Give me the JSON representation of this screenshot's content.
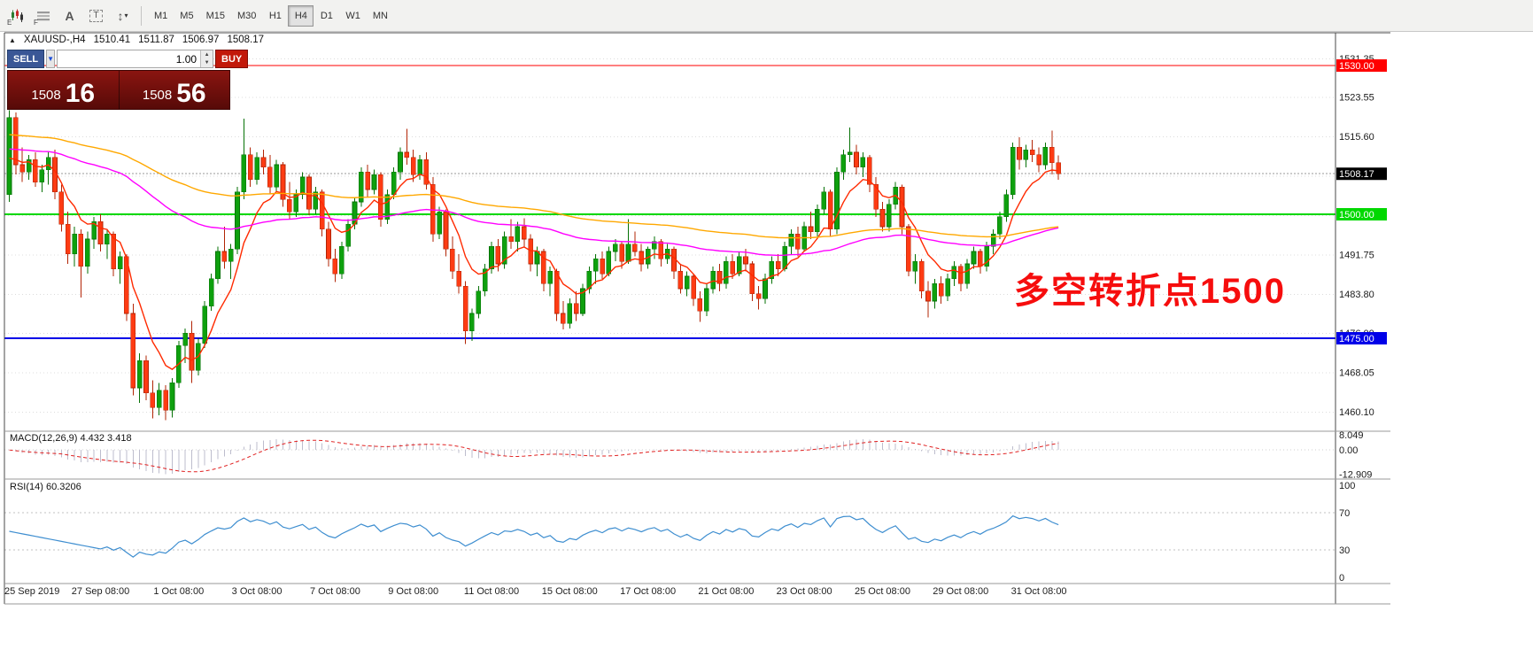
{
  "window": {
    "bg": "#ffffff"
  },
  "toolbar": {
    "icons": [
      {
        "name": "candlestick-chart-icon",
        "kind": "candles",
        "badge": "E"
      },
      {
        "name": "indicator-list-icon",
        "kind": "lines",
        "badge": "F"
      },
      {
        "name": "text-annotation-icon",
        "glyph": "A"
      },
      {
        "name": "text-box-icon",
        "glyph": "T",
        "boxed": true
      },
      {
        "name": "object-sort-icon",
        "glyph": "↕",
        "caret": true
      }
    ],
    "timeframes": [
      {
        "label": "M1"
      },
      {
        "label": "M5"
      },
      {
        "label": "M15"
      },
      {
        "label": "M30"
      },
      {
        "label": "H1"
      },
      {
        "label": "H4",
        "active": true
      },
      {
        "label": "D1"
      },
      {
        "label": "W1"
      },
      {
        "label": "MN"
      }
    ]
  },
  "chart": {
    "title_line": {
      "collapse_icon": "▲",
      "symbol_period": "XAUUSD-,H4",
      "open": "1510.41",
      "high": "1511.87",
      "low": "1506.97",
      "close": "1508.17"
    },
    "trade_panel": {
      "sell_label": "SELL",
      "buy_label": "BUY",
      "volume": "1.00",
      "sell_price_main": "1508",
      "sell_price_big": "16",
      "buy_price_main": "1508",
      "buy_price_big": "56",
      "colors": {
        "sell_bg": "#3a5796",
        "buy_bg": "#c2180a",
        "panel_top": "#8a1510",
        "panel_bottom": "#570a08"
      }
    },
    "annotation": {
      "text": "多空转折点1500",
      "color": "#f60d0d"
    },
    "hlines": [
      {
        "value": 1530.0,
        "label": "1530.00",
        "color": "#ff0000",
        "width": 1
      },
      {
        "value": 1500.0,
        "label": "1500.00",
        "color": "#00d800",
        "width": 2
      },
      {
        "value": 1475.0,
        "label": "1475.00",
        "color": "#0000e8",
        "width": 2
      }
    ],
    "price_axis": {
      "labels": [
        1531.35,
        1523.55,
        1515.6,
        1491.75,
        1483.8,
        1476.0,
        1468.05,
        1460.1
      ],
      "grid": [
        1531.35,
        1523.55,
        1515.6,
        1507.65,
        1499.7,
        1491.75,
        1483.8,
        1476.0,
        1468.05,
        1460.1
      ],
      "current": {
        "value": 1508.17,
        "label": "1508.17",
        "bg": "#000000",
        "text": "#ffffff"
      }
    },
    "colors": {
      "up": "#0ea00e",
      "up_border": "#067206",
      "down": "#fd3b13",
      "down_border": "#b22405",
      "grid": "#dcdcdc",
      "axis_text": "#1a1a1a",
      "border": "#4a4a4a",
      "bid_line": "#9a9a9a"
    }
  },
  "chart_data": {
    "type": "candlestick",
    "symbol": "XAUUSD-",
    "timeframe": "H4",
    "x_labels": [
      {
        "index": 2,
        "label": "25 Sep 2019"
      },
      {
        "index": 14,
        "label": "27 Sep 08:00"
      },
      {
        "index": 26,
        "label": "1 Oct 08:00"
      },
      {
        "index": 38,
        "label": "3 Oct 08:00"
      },
      {
        "index": 50,
        "label": "7 Oct 08:00"
      },
      {
        "index": 62,
        "label": "9 Oct 08:00"
      },
      {
        "index": 74,
        "label": "11 Oct 08:00"
      },
      {
        "index": 86,
        "label": "15 Oct 08:00"
      },
      {
        "index": 98,
        "label": "17 Oct 08:00"
      },
      {
        "index": 110,
        "label": "21 Oct 08:00"
      },
      {
        "index": 122,
        "label": "23 Oct 08:00"
      },
      {
        "index": 134,
        "label": "25 Oct 08:00"
      },
      {
        "index": 146,
        "label": "29 Oct 08:00"
      },
      {
        "index": 158,
        "label": "31 Oct 08:00"
      }
    ],
    "candles": [
      [
        1504.0,
        1521.0,
        1502.5,
        1519.5
      ],
      [
        1519.5,
        1520.5,
        1508.0,
        1510.0
      ],
      [
        1510.0,
        1513.5,
        1506.5,
        1508.5
      ],
      [
        1508.5,
        1512.0,
        1507.0,
        1511.0
      ],
      [
        1511.0,
        1512.5,
        1505.5,
        1506.5
      ],
      [
        1506.5,
        1510.0,
        1504.5,
        1509.0
      ],
      [
        1509.0,
        1512.5,
        1506.0,
        1511.5
      ],
      [
        1511.5,
        1513.0,
        1503.0,
        1504.5
      ],
      [
        1504.5,
        1506.0,
        1496.5,
        1498.0
      ],
      [
        1498.0,
        1500.5,
        1490.0,
        1492.0
      ],
      [
        1492.0,
        1497.5,
        1489.5,
        1496.0
      ],
      [
        1496.0,
        1497.0,
        1483.2,
        1489.5
      ],
      [
        1489.5,
        1496.5,
        1488.0,
        1495.0
      ],
      [
        1495.0,
        1499.5,
        1493.0,
        1498.5
      ],
      [
        1498.5,
        1500.0,
        1492.5,
        1494.0
      ],
      [
        1494.0,
        1497.0,
        1491.0,
        1496.0
      ],
      [
        1496.0,
        1496.5,
        1487.5,
        1489.0
      ],
      [
        1489.0,
        1492.5,
        1486.0,
        1491.5
      ],
      [
        1491.5,
        1492.0,
        1478.5,
        1480.0
      ],
      [
        1480.0,
        1482.0,
        1463.5,
        1465.0
      ],
      [
        1465.0,
        1472.0,
        1462.0,
        1470.5
      ],
      [
        1470.5,
        1471.5,
        1462.5,
        1464.0
      ],
      [
        1464.0,
        1466.5,
        1458.8,
        1461.0
      ],
      [
        1461.0,
        1466.0,
        1459.5,
        1464.5
      ],
      [
        1464.5,
        1465.5,
        1458.5,
        1460.5
      ],
      [
        1460.5,
        1467.0,
        1459.0,
        1466.0
      ],
      [
        1466.0,
        1474.5,
        1465.0,
        1473.5
      ],
      [
        1473.5,
        1477.0,
        1470.0,
        1476.0
      ],
      [
        1476.0,
        1478.5,
        1466.0,
        1468.5
      ],
      [
        1468.5,
        1475.0,
        1467.5,
        1474.0
      ],
      [
        1474.0,
        1482.5,
        1473.0,
        1481.5
      ],
      [
        1481.5,
        1488.0,
        1480.5,
        1487.0
      ],
      [
        1487.0,
        1493.5,
        1486.0,
        1492.5
      ],
      [
        1492.5,
        1497.5,
        1489.0,
        1490.5
      ],
      [
        1490.5,
        1494.0,
        1487.0,
        1493.0
      ],
      [
        1493.0,
        1505.5,
        1492.0,
        1504.5
      ],
      [
        1504.5,
        1519.3,
        1503.0,
        1512.0
      ],
      [
        1512.0,
        1513.5,
        1505.5,
        1507.0
      ],
      [
        1507.0,
        1512.5,
        1506.0,
        1511.5
      ],
      [
        1511.5,
        1513.0,
        1508.0,
        1509.5
      ],
      [
        1509.5,
        1512.0,
        1504.0,
        1505.5
      ],
      [
        1505.5,
        1511.0,
        1504.5,
        1510.0
      ],
      [
        1510.0,
        1510.5,
        1501.5,
        1503.0
      ],
      [
        1503.0,
        1506.5,
        1499.0,
        1500.5
      ],
      [
        1500.5,
        1505.0,
        1499.5,
        1504.0
      ],
      [
        1504.0,
        1508.5,
        1503.0,
        1507.5
      ],
      [
        1507.5,
        1508.0,
        1499.8,
        1501.0
      ],
      [
        1501.0,
        1505.5,
        1500.0,
        1504.5
      ],
      [
        1504.5,
        1505.0,
        1495.5,
        1497.0
      ],
      [
        1497.0,
        1498.5,
        1489.5,
        1491.0
      ],
      [
        1491.0,
        1493.0,
        1486.3,
        1488.0
      ],
      [
        1488.0,
        1494.5,
        1487.0,
        1493.5
      ],
      [
        1493.5,
        1499.0,
        1492.5,
        1498.0
      ],
      [
        1498.0,
        1503.5,
        1497.0,
        1502.5
      ],
      [
        1502.5,
        1509.5,
        1501.5,
        1508.5
      ],
      [
        1508.5,
        1510.0,
        1503.5,
        1505.0
      ],
      [
        1505.0,
        1509.0,
        1504.0,
        1508.0
      ],
      [
        1508.0,
        1508.5,
        1497.5,
        1499.0
      ],
      [
        1499.0,
        1505.0,
        1498.0,
        1504.0
      ],
      [
        1504.0,
        1509.5,
        1503.0,
        1508.5
      ],
      [
        1508.5,
        1513.5,
        1507.0,
        1512.5
      ],
      [
        1512.5,
        1517.2,
        1510.0,
        1511.5
      ],
      [
        1511.5,
        1513.0,
        1506.5,
        1508.0
      ],
      [
        1508.0,
        1512.0,
        1507.0,
        1511.0
      ],
      [
        1511.0,
        1512.5,
        1505.0,
        1506.0
      ],
      [
        1506.0,
        1507.5,
        1494.5,
        1496.0
      ],
      [
        1496.0,
        1501.5,
        1495.0,
        1500.5
      ],
      [
        1500.5,
        1501.0,
        1491.5,
        1493.0
      ],
      [
        1493.0,
        1495.5,
        1487.0,
        1488.5
      ],
      [
        1488.5,
        1492.0,
        1484.0,
        1485.5
      ],
      [
        1485.5,
        1486.5,
        1473.8,
        1476.5
      ],
      [
        1476.5,
        1481.0,
        1474.5,
        1480.0
      ],
      [
        1480.0,
        1485.5,
        1479.0,
        1484.5
      ],
      [
        1484.5,
        1490.0,
        1483.5,
        1489.0
      ],
      [
        1489.0,
        1494.5,
        1488.0,
        1493.5
      ],
      [
        1493.5,
        1495.0,
        1488.5,
        1490.0
      ],
      [
        1490.0,
        1496.5,
        1489.0,
        1495.5
      ],
      [
        1495.5,
        1499.0,
        1493.0,
        1494.5
      ],
      [
        1494.5,
        1498.5,
        1492.5,
        1497.5
      ],
      [
        1497.5,
        1499.2,
        1493.5,
        1495.0
      ],
      [
        1495.0,
        1496.0,
        1488.5,
        1490.0
      ],
      [
        1490.0,
        1493.5,
        1487.5,
        1492.5
      ],
      [
        1492.5,
        1493.0,
        1484.5,
        1486.0
      ],
      [
        1486.0,
        1489.5,
        1483.5,
        1488.5
      ],
      [
        1488.5,
        1489.0,
        1478.5,
        1480.0
      ],
      [
        1480.0,
        1482.5,
        1476.8,
        1478.0
      ],
      [
        1478.0,
        1483.0,
        1477.0,
        1482.0
      ],
      [
        1482.0,
        1484.5,
        1478.5,
        1480.0
      ],
      [
        1480.0,
        1486.0,
        1479.5,
        1485.0
      ],
      [
        1485.0,
        1489.5,
        1484.0,
        1488.5
      ],
      [
        1488.5,
        1492.0,
        1486.0,
        1491.0
      ],
      [
        1491.0,
        1492.5,
        1487.0,
        1488.0
      ],
      [
        1488.0,
        1493.5,
        1487.5,
        1492.5
      ],
      [
        1492.5,
        1495.0,
        1490.5,
        1494.0
      ],
      [
        1494.0,
        1494.5,
        1489.0,
        1490.5
      ],
      [
        1490.5,
        1499.0,
        1490.0,
        1494.0
      ],
      [
        1494.0,
        1496.5,
        1491.5,
        1492.5
      ],
      [
        1492.5,
        1494.0,
        1488.5,
        1490.0
      ],
      [
        1490.0,
        1493.5,
        1489.0,
        1493.0
      ],
      [
        1493.0,
        1495.5,
        1491.0,
        1494.5
      ],
      [
        1494.5,
        1495.0,
        1489.5,
        1491.0
      ],
      [
        1491.0,
        1494.0,
        1490.0,
        1493.0
      ],
      [
        1493.0,
        1493.5,
        1487.0,
        1488.5
      ],
      [
        1488.5,
        1490.0,
        1484.0,
        1485.0
      ],
      [
        1485.0,
        1488.5,
        1483.5,
        1487.5
      ],
      [
        1487.5,
        1488.0,
        1481.5,
        1483.0
      ],
      [
        1483.0,
        1484.5,
        1478.3,
        1480.5
      ],
      [
        1480.5,
        1486.0,
        1479.5,
        1485.0
      ],
      [
        1485.0,
        1489.5,
        1484.0,
        1488.5
      ],
      [
        1488.5,
        1490.0,
        1484.5,
        1486.0
      ],
      [
        1486.0,
        1491.5,
        1485.0,
        1490.5
      ],
      [
        1490.5,
        1492.0,
        1487.0,
        1488.0
      ],
      [
        1488.0,
        1492.5,
        1487.5,
        1491.5
      ],
      [
        1491.5,
        1493.0,
        1488.5,
        1490.0
      ],
      [
        1490.0,
        1490.5,
        1482.5,
        1484.0
      ],
      [
        1484.0,
        1485.5,
        1480.8,
        1483.0
      ],
      [
        1483.0,
        1488.0,
        1482.0,
        1487.0
      ],
      [
        1487.0,
        1491.5,
        1486.0,
        1490.5
      ],
      [
        1490.5,
        1492.0,
        1487.5,
        1489.0
      ],
      [
        1489.0,
        1494.5,
        1488.5,
        1493.5
      ],
      [
        1493.5,
        1497.0,
        1492.0,
        1496.0
      ],
      [
        1496.0,
        1497.5,
        1491.5,
        1493.0
      ],
      [
        1493.0,
        1498.5,
        1492.5,
        1497.5
      ],
      [
        1497.5,
        1500.5,
        1495.0,
        1496.5
      ],
      [
        1496.5,
        1502.0,
        1495.5,
        1501.0
      ],
      [
        1501.0,
        1505.5,
        1500.0,
        1504.5
      ],
      [
        1504.5,
        1505.0,
        1495.5,
        1497.0
      ],
      [
        1497.0,
        1509.5,
        1496.0,
        1508.5
      ],
      [
        1508.5,
        1513.0,
        1507.0,
        1512.0
      ],
      [
        1512.0,
        1517.5,
        1510.5,
        1512.5
      ],
      [
        1512.5,
        1514.0,
        1508.0,
        1509.5
      ],
      [
        1509.5,
        1512.5,
        1507.5,
        1511.5
      ],
      [
        1511.5,
        1512.0,
        1504.5,
        1506.0
      ],
      [
        1506.0,
        1507.5,
        1499.5,
        1501.0
      ],
      [
        1501.0,
        1502.5,
        1496.5,
        1497.5
      ],
      [
        1497.5,
        1503.0,
        1496.5,
        1502.0
      ],
      [
        1502.0,
        1506.5,
        1501.0,
        1505.5
      ],
      [
        1505.5,
        1506.0,
        1496.0,
        1497.5
      ],
      [
        1497.5,
        1498.0,
        1487.5,
        1488.5
      ],
      [
        1488.5,
        1492.0,
        1486.0,
        1490.5
      ],
      [
        1490.5,
        1491.0,
        1483.0,
        1484.5
      ],
      [
        1484.5,
        1486.5,
        1479.2,
        1482.5
      ],
      [
        1482.5,
        1487.0,
        1481.0,
        1486.0
      ],
      [
        1486.0,
        1487.5,
        1482.0,
        1483.5
      ],
      [
        1483.5,
        1488.0,
        1482.5,
        1487.0
      ],
      [
        1487.0,
        1490.5,
        1485.5,
        1489.5
      ],
      [
        1489.5,
        1490.0,
        1484.5,
        1486.0
      ],
      [
        1486.0,
        1491.0,
        1485.0,
        1490.0
      ],
      [
        1490.0,
        1493.5,
        1489.0,
        1492.5
      ],
      [
        1492.5,
        1493.0,
        1488.0,
        1489.5
      ],
      [
        1489.5,
        1494.5,
        1488.5,
        1493.5
      ],
      [
        1493.5,
        1497.0,
        1492.0,
        1496.0
      ],
      [
        1496.0,
        1500.5,
        1495.0,
        1499.5
      ],
      [
        1499.5,
        1505.0,
        1498.5,
        1504.0
      ],
      [
        1504.0,
        1514.5,
        1503.0,
        1513.5
      ],
      [
        1513.5,
        1515.5,
        1509.0,
        1511.0
      ],
      [
        1511.0,
        1514.0,
        1509.5,
        1513.0
      ],
      [
        1513.0,
        1515.0,
        1510.5,
        1512.0
      ],
      [
        1512.0,
        1513.5,
        1508.5,
        1510.0
      ],
      [
        1510.0,
        1514.5,
        1509.0,
        1513.5
      ],
      [
        1513.5,
        1516.9,
        1508.0,
        1510.41
      ],
      [
        1510.41,
        1511.87,
        1506.97,
        1508.17
      ]
    ],
    "moving_averages": [
      {
        "name": "ma-fast-red",
        "period": 8,
        "seed": 1509,
        "color": "#ff2a00"
      },
      {
        "name": "ma-mid-magenta",
        "period": 80,
        "seed": 1513,
        "color": "#ff00ff"
      },
      {
        "name": "ma-slow-orange",
        "period": 130,
        "seed": 1516,
        "color": "#ffa800"
      }
    ],
    "indicators": [
      {
        "type": "MACD",
        "label": "MACD(12,26,9) 4.432 3.418",
        "fast": 12,
        "slow": 26,
        "signal": 9,
        "axis_labels": [
          "8.049",
          "0.00",
          "-12.909"
        ],
        "hist_color": "#bdbdcd",
        "signal_color": "#e02020"
      },
      {
        "type": "RSI",
        "label": "RSI(14) 60.3206",
        "period": 14,
        "levels": [
          70,
          30
        ],
        "axis_labels": [
          "100",
          "70",
          "30",
          "0"
        ],
        "line_color": "#3e8ed0"
      }
    ]
  }
}
